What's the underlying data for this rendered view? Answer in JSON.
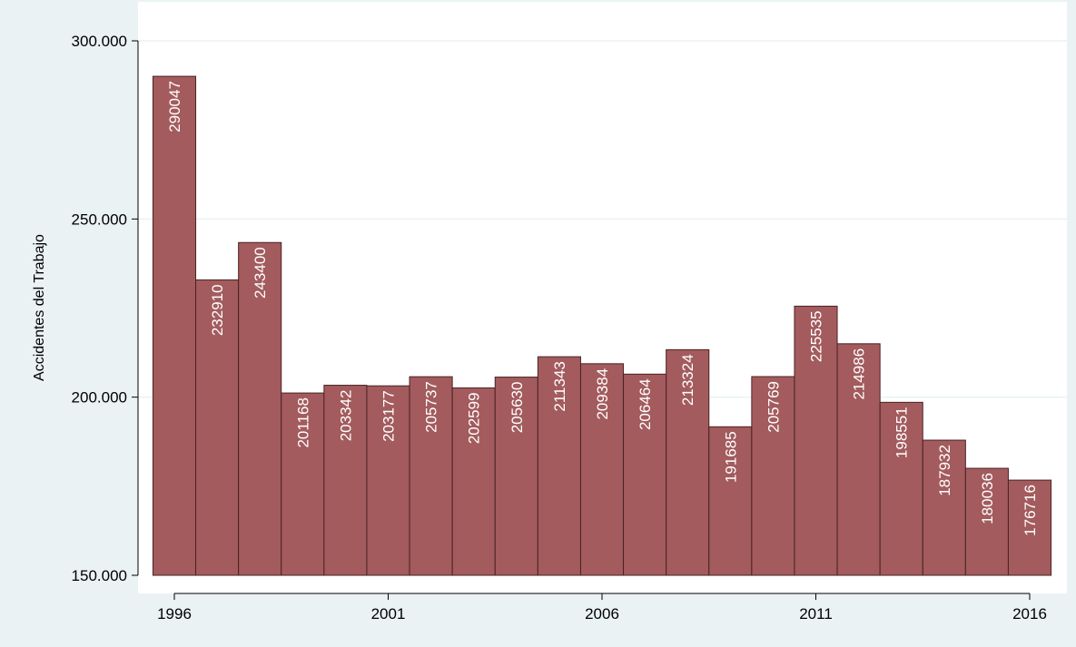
{
  "chart_data": {
    "type": "bar",
    "title": "",
    "xlabel": "",
    "ylabel": "Accidentes del Trabajo",
    "ylim": [
      150000,
      300000
    ],
    "yticks": [
      150000,
      200000,
      250000,
      300000
    ],
    "ytick_labels": [
      "150.000",
      "200.000",
      "250.000",
      "300.000"
    ],
    "xticks": [
      1996,
      2001,
      2006,
      2011,
      2016
    ],
    "xtick_labels": [
      "1996",
      "2001",
      "2006",
      "2011",
      "2016"
    ],
    "grid": true,
    "bar_color": "#a35b5d",
    "bar_edge_color": "#4a2324",
    "plot_background": "#ffffff",
    "outer_background": "#eaf2f3",
    "data_labels": "vertical, inside top of bar",
    "categories": [
      1996,
      1997,
      1998,
      1999,
      2000,
      2001,
      2002,
      2003,
      2004,
      2005,
      2006,
      2007,
      2008,
      2009,
      2010,
      2011,
      2012,
      2013,
      2014,
      2015,
      2016
    ],
    "values": [
      290047,
      232910,
      243400,
      201168,
      203342,
      203177,
      205737,
      202599,
      205630,
      211343,
      209384,
      206464,
      213324,
      191685,
      205769,
      225535,
      214986,
      198551,
      187932,
      180036,
      176716
    ],
    "value_labels": [
      "290047",
      "232910",
      "243400",
      "201168",
      "203342",
      "203177",
      "205737",
      "202599",
      "205630",
      "211343",
      "209384",
      "206464",
      "213324",
      "191685",
      "205769",
      "225535",
      "214986",
      "198551",
      "187932",
      "180036",
      "176716"
    ]
  }
}
